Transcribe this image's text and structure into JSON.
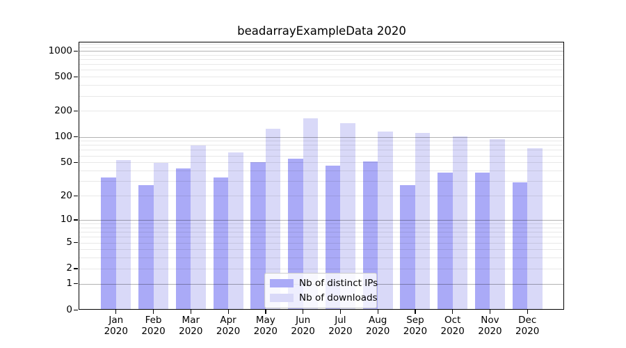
{
  "chart_data": {
    "type": "bar",
    "title": "beadarrayExampleData 2020",
    "x": {
      "months": [
        "Jan",
        "Feb",
        "Mar",
        "Apr",
        "May",
        "Jun",
        "Jul",
        "Aug",
        "Sep",
        "Oct",
        "Nov",
        "Dec"
      ],
      "year": "2020"
    },
    "series": [
      {
        "name": "Nb of distinct IPs",
        "color": "#aaaaf7",
        "values": [
          33,
          27,
          42,
          33,
          50,
          55,
          46,
          51,
          27,
          38,
          38,
          29
        ]
      },
      {
        "name": "Nb of downloads",
        "color": "#d9d9f8",
        "values": [
          53,
          49,
          79,
          66,
          125,
          164,
          144,
          115,
          111,
          101,
          94,
          74
        ]
      }
    ],
    "y_axis": {
      "scale": "log1p",
      "ticks": [
        0,
        1,
        2,
        5,
        10,
        20,
        50,
        100,
        200,
        500,
        1000
      ],
      "decade_lines": [
        1,
        10,
        100,
        1000
      ]
    },
    "grid": {
      "on": true,
      "minor_color": "rgba(0,0,0,0.09)",
      "major_color": "rgba(0,0,0,0.30)"
    },
    "legend": {
      "position": "lower center",
      "frame_border": "#cccccc"
    },
    "colors": {
      "background": "#ffffff",
      "axis": "#000000",
      "text": "#000000"
    }
  }
}
